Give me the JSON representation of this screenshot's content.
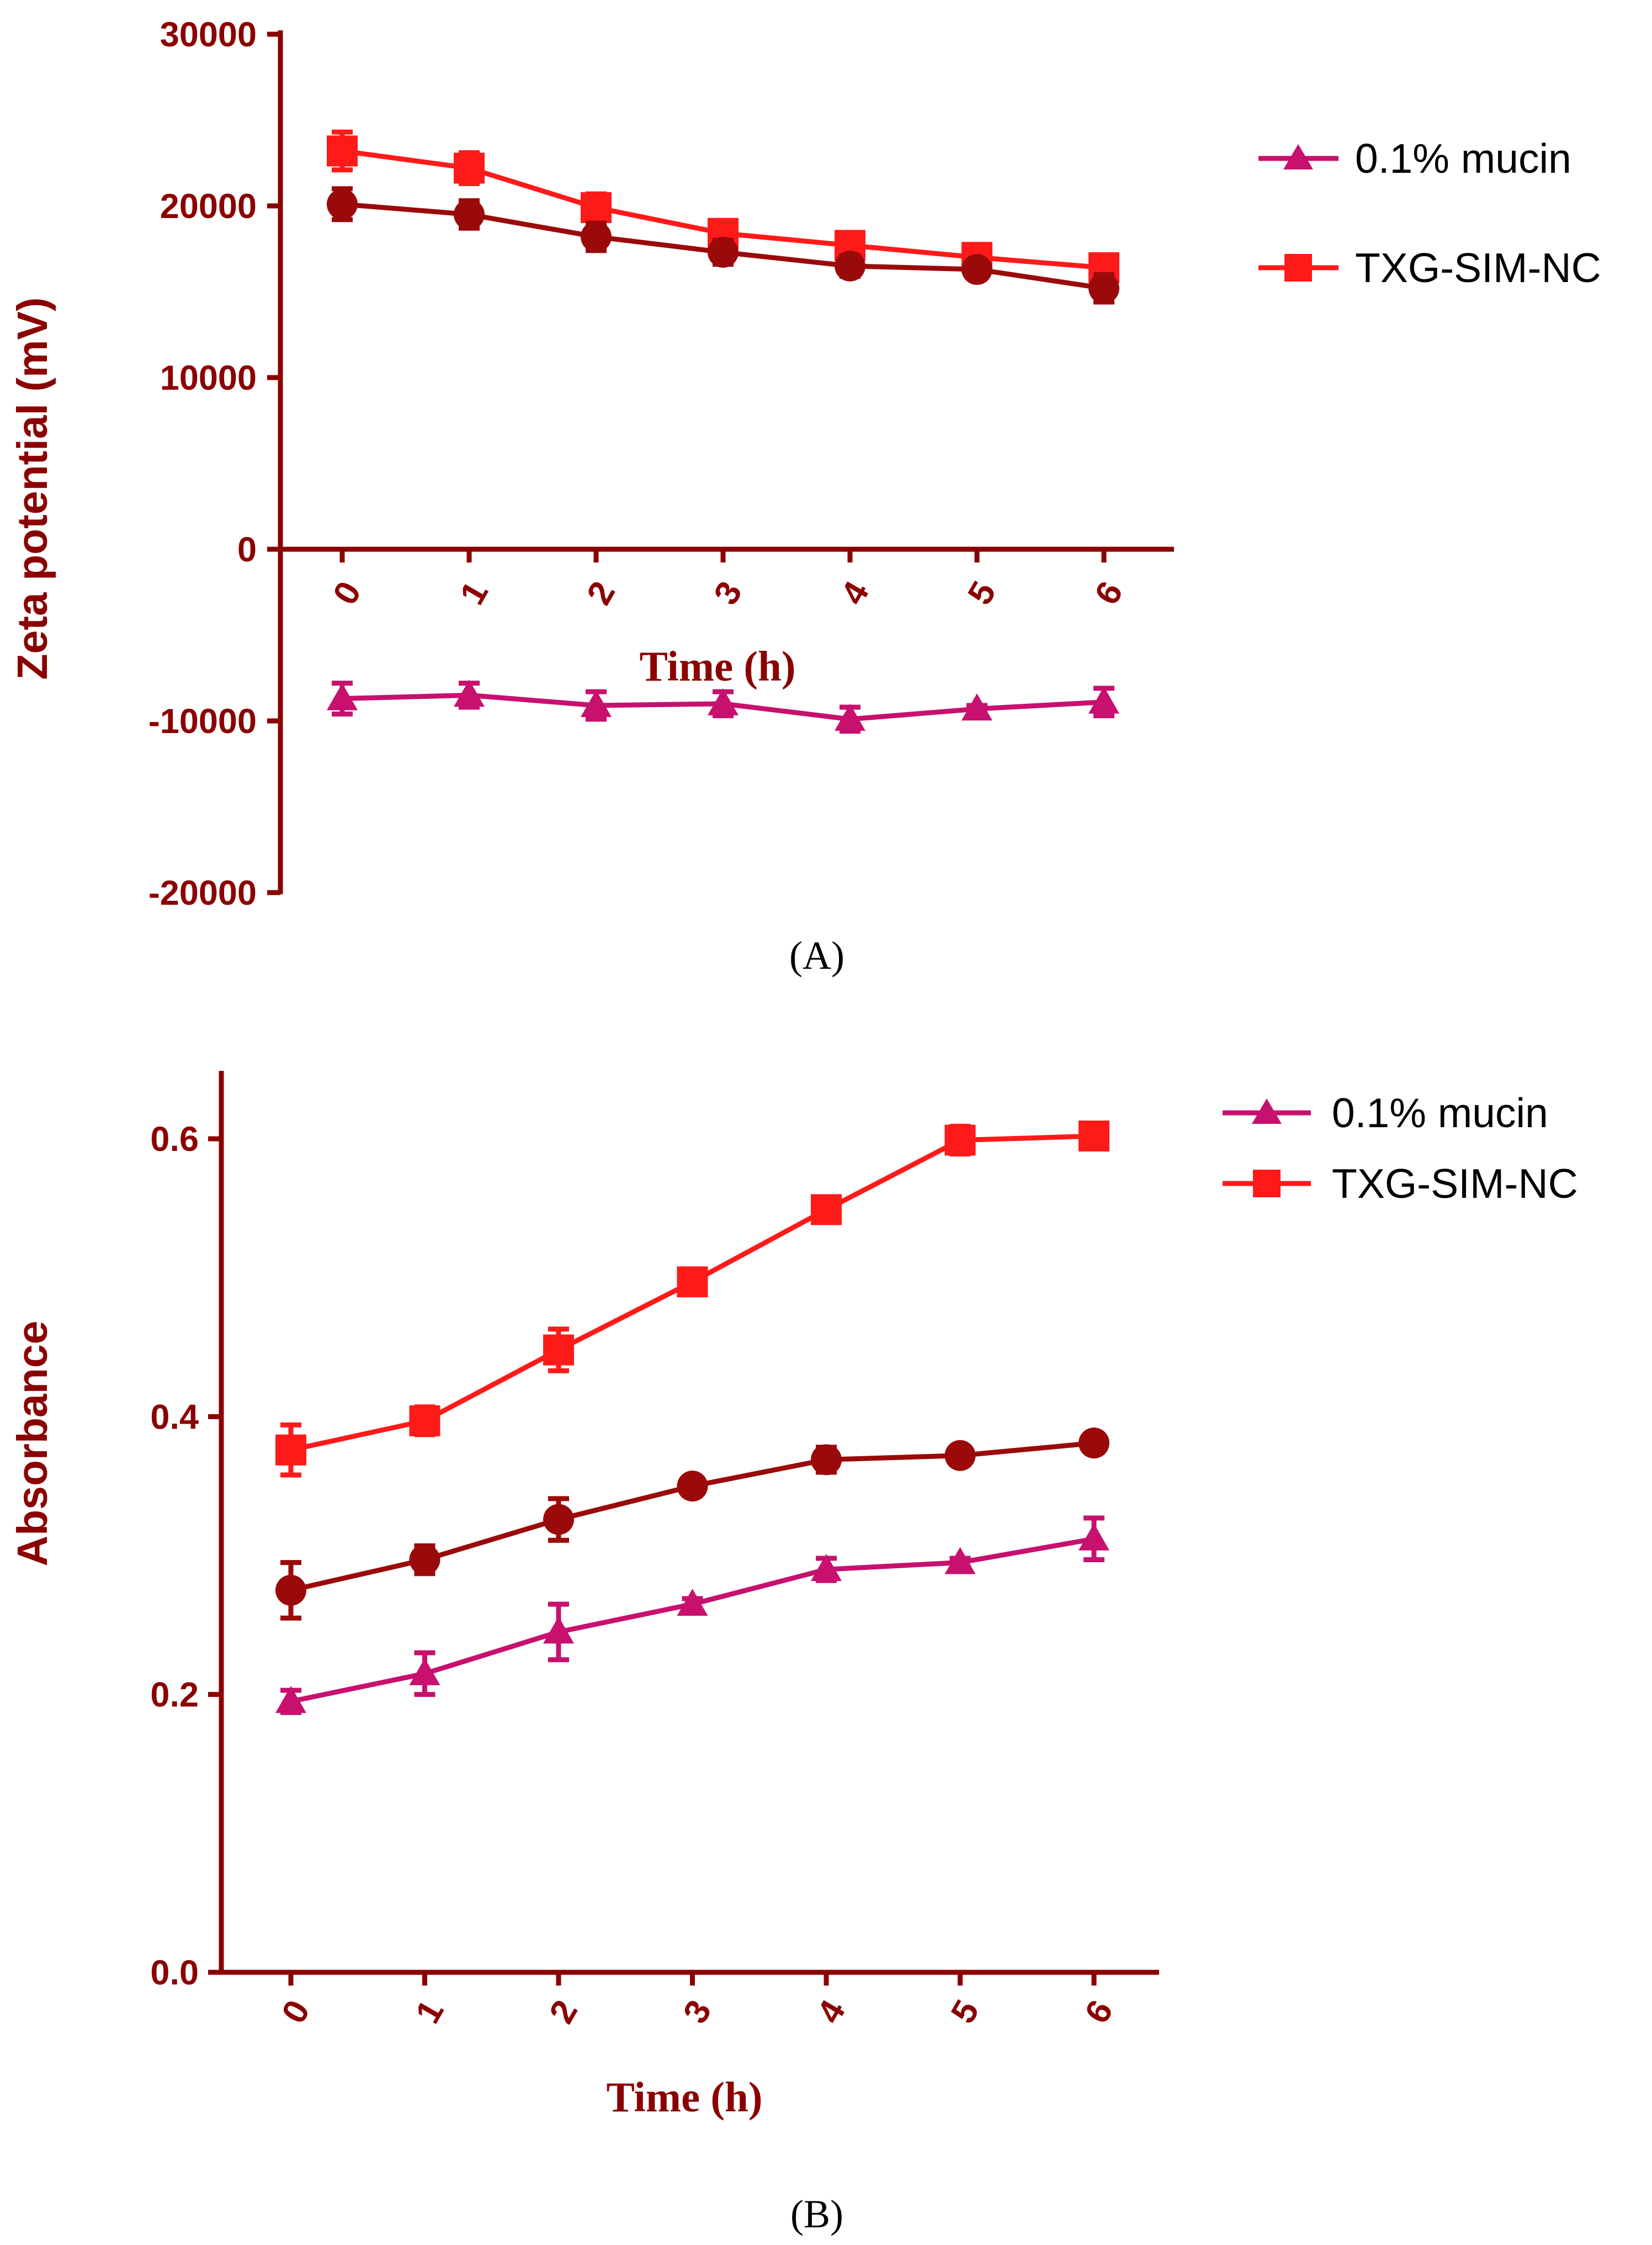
{
  "chart_data": [
    {
      "type": "line",
      "panel": "A",
      "panel_label": "(A)",
      "xlabel": "Time (h)",
      "ylabel": "Zeta potential (mV)",
      "categories": [
        "0",
        "1",
        "2",
        "3",
        "4",
        "5",
        "6"
      ],
      "yticks": [
        "30000",
        "20000",
        "10000",
        "0",
        "-10000",
        "-20000"
      ],
      "ytick_values": [
        30000,
        20000,
        10000,
        0,
        -10000,
        -20000
      ],
      "ylim": [
        -20000,
        30000
      ],
      "legend_position": "top-right",
      "series": [
        {
          "name": "0.1% mucin",
          "legend": "0.1% mucin",
          "marker": "triangle",
          "color": "#c8106e",
          "values": [
            -8700,
            -8500,
            -9100,
            -9000,
            -9900,
            -9300,
            -8900
          ],
          "errors": [
            900,
            700,
            800,
            700,
            700,
            200,
            800
          ]
        },
        {
          "name": "TXG-SIM-NC",
          "legend": "TXG-SIM-NC",
          "marker": "square",
          "color": "#ff1a1a",
          "values": [
            23200,
            22200,
            19900,
            18400,
            17700,
            17000,
            16400
          ],
          "errors": [
            1100,
            900,
            800,
            600,
            600,
            500,
            600
          ]
        },
        {
          "name": "unlabeled series",
          "legend": null,
          "marker": "circle",
          "color": "#9b0a0a",
          "values": [
            20100,
            19500,
            18200,
            17300,
            16500,
            16300,
            15200
          ],
          "errors": [
            900,
            800,
            800,
            700,
            600,
            300,
            800
          ]
        }
      ]
    },
    {
      "type": "line",
      "panel": "B",
      "panel_label": "(B)",
      "xlabel": "Time (h)",
      "ylabel": "Absorbance",
      "categories": [
        "0",
        "1",
        "2",
        "3",
        "4",
        "5",
        "6"
      ],
      "yticks": [
        "0.0",
        "0.2",
        "0.4",
        "0.6"
      ],
      "ytick_values": [
        0.0,
        0.2,
        0.4,
        0.6
      ],
      "ylim": [
        0,
        0.65
      ],
      "legend_position": "top-right",
      "series": [
        {
          "name": "0.1% mucin",
          "legend": "0.1% mucin",
          "marker": "triangle",
          "color": "#c8106e",
          "values": [
            0.195,
            0.215,
            0.245,
            0.265,
            0.29,
            0.295,
            0.312
          ],
          "errors": [
            0.008,
            0.015,
            0.02,
            0.004,
            0.008,
            0.003,
            0.015
          ]
        },
        {
          "name": "TXG-SIM-NC",
          "legend": "TXG-SIM-NC",
          "marker": "square",
          "color": "#ff1a1a",
          "values": [
            0.376,
            0.397,
            0.448,
            0.497,
            0.549,
            0.599,
            0.602
          ],
          "errors": [
            0.018,
            0.01,
            0.015,
            0.004,
            0.009,
            0.01,
            0.004
          ]
        },
        {
          "name": "unlabeled series",
          "legend": null,
          "marker": "circle",
          "color": "#9b0a0a",
          "values": [
            0.275,
            0.297,
            0.326,
            0.35,
            0.369,
            0.372,
            0.381
          ],
          "errors": [
            0.02,
            0.01,
            0.015,
            0.004,
            0.009,
            0.003,
            0.003
          ]
        }
      ]
    }
  ]
}
